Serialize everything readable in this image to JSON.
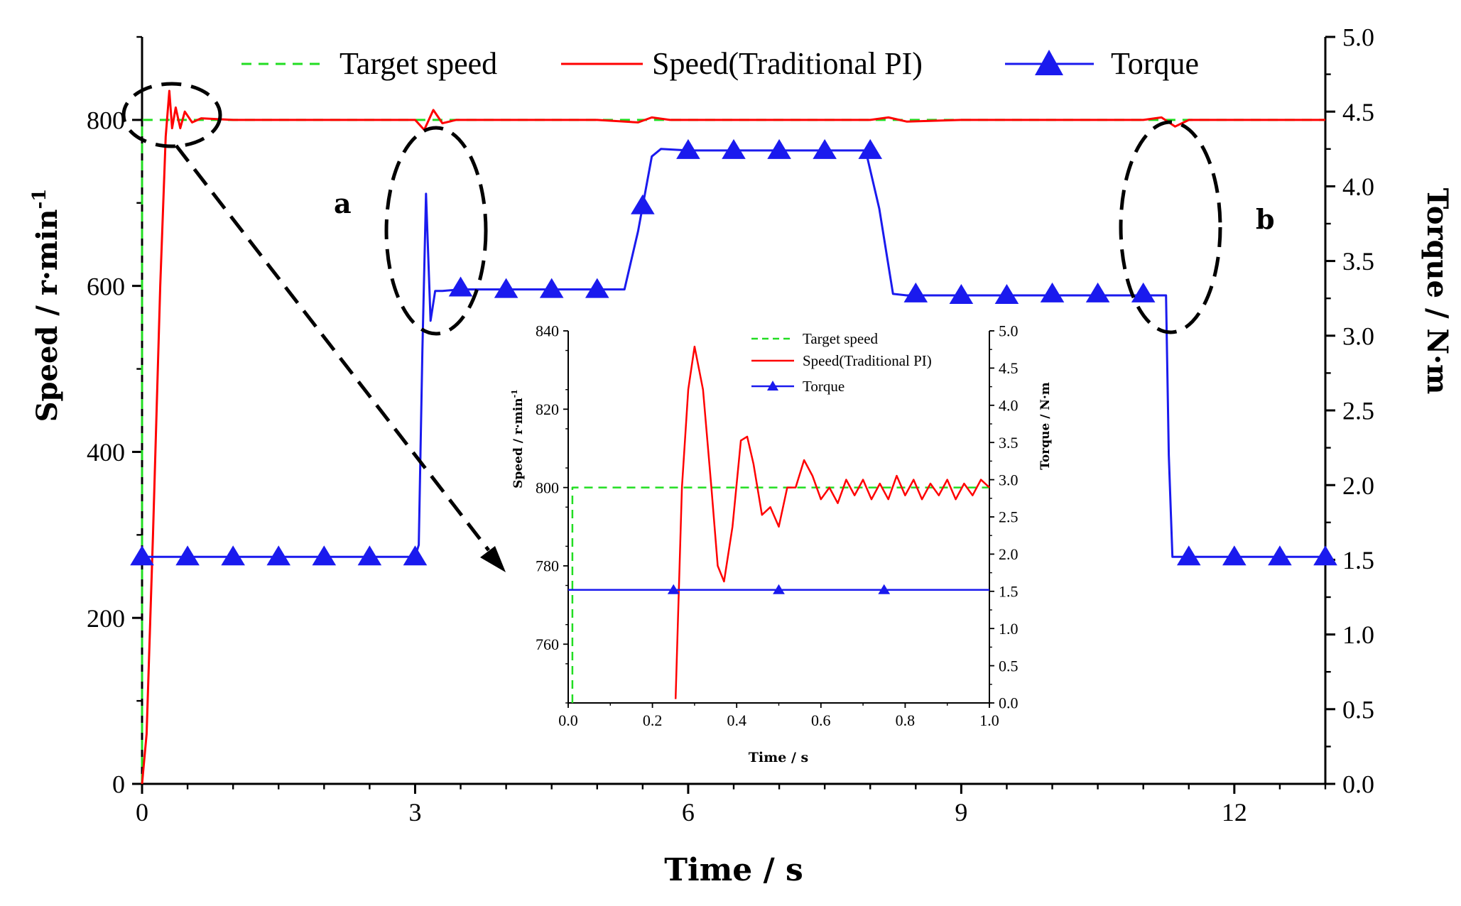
{
  "chart_data": [
    {
      "type": "line",
      "title": "",
      "xlabel": "Time / s",
      "ylabel_left": "Speed / r·min",
      "ylabel_left_sup": "-1",
      "ylabel_right": "Torque / N·m",
      "xlim": [
        0,
        13
      ],
      "ylim_left": [
        0,
        900
      ],
      "ylim_right": [
        0,
        5
      ],
      "x_ticks": [
        0,
        3,
        6,
        9,
        12
      ],
      "x_tick_labels": [
        "0",
        "3",
        "6",
        "9",
        "12"
      ],
      "y_left_ticks": [
        0,
        200,
        400,
        600,
        800
      ],
      "y_left_tick_labels": [
        "0",
        "200",
        "400",
        "600",
        "800"
      ],
      "y_right_ticks": [
        0,
        0.5,
        1,
        1.5,
        2,
        2.5,
        3,
        3.5,
        4,
        4.5,
        5
      ],
      "y_right_tick_labels": [
        "0.0",
        "0.5",
        "1.0",
        "1.5",
        "2.0",
        "2.5",
        "3.0",
        "3.5",
        "4.0",
        "4.5",
        "5.0"
      ],
      "legend": [
        "Target speed",
        "Speed(Traditional PI)",
        "Torque"
      ],
      "legend_position": "top",
      "annotations": [
        "a",
        "b"
      ],
      "series": [
        {
          "name": "Target speed",
          "axis": "left",
          "style": "dashed",
          "color": "#22dd22",
          "x": [
            0,
            0,
            13
          ],
          "y": [
            0,
            800,
            800
          ]
        },
        {
          "name": "Speed(Traditional PI)",
          "axis": "left",
          "style": "solid",
          "color": "#ff0000",
          "x": [
            0,
            0.05,
            0.12,
            0.2,
            0.26,
            0.3,
            0.33,
            0.37,
            0.42,
            0.47,
            0.55,
            0.65,
            1.0,
            2.0,
            3.0,
            3.1,
            3.2,
            3.3,
            3.45,
            4.0,
            5.0,
            5.45,
            5.6,
            5.8,
            6.5,
            7.5,
            8.0,
            8.2,
            8.4,
            9.0,
            10.0,
            11.0,
            11.2,
            11.35,
            11.5,
            12.0,
            13.0
          ],
          "y": [
            0,
            60,
            300,
            600,
            780,
            835,
            790,
            815,
            790,
            810,
            797,
            802,
            800,
            800,
            800,
            788,
            812,
            796,
            800,
            800,
            800,
            797,
            803,
            800,
            800,
            800,
            800,
            803,
            798,
            800,
            800,
            800,
            803,
            792,
            800,
            800,
            800
          ]
        },
        {
          "name": "Torque",
          "axis": "right",
          "style": "solid",
          "marker": "triangle",
          "color": "#1a1aee",
          "x": [
            0,
            3.0,
            3.04,
            3.08,
            3.12,
            3.17,
            3.22,
            3.3,
            3.5,
            5.3,
            5.45,
            5.6,
            5.7,
            6.0,
            7.95,
            8.1,
            8.25,
            8.4,
            11.25,
            11.28,
            11.32,
            13.0
          ],
          "y": [
            1.52,
            1.52,
            1.6,
            2.9,
            3.95,
            3.1,
            3.3,
            3.3,
            3.31,
            3.31,
            3.7,
            4.2,
            4.25,
            4.24,
            4.24,
            3.85,
            3.28,
            3.27,
            3.27,
            2.2,
            1.52,
            1.52
          ],
          "markers_x": [
            0,
            0.5,
            1.0,
            1.5,
            2.0,
            2.5,
            3.0,
            3.5,
            4.0,
            4.5,
            5.0,
            5.5,
            6.0,
            6.5,
            7.0,
            7.5,
            8.0,
            8.5,
            9.0,
            9.5,
            10.0,
            10.5,
            11.0,
            11.5,
            12.0,
            12.5,
            13.0
          ],
          "markers_y": [
            1.52,
            1.52,
            1.52,
            1.52,
            1.52,
            1.52,
            1.52,
            3.32,
            3.31,
            3.31,
            3.31,
            3.87,
            4.24,
            4.24,
            4.24,
            4.24,
            4.24,
            3.28,
            3.27,
            3.27,
            3.28,
            3.28,
            3.28,
            1.52,
            1.52,
            1.52,
            1.52
          ]
        }
      ]
    },
    {
      "type": "line",
      "title": "",
      "xlabel": "Time / s",
      "ylabel_left": "Speed / r·min",
      "ylabel_left_sup": "-1",
      "ylabel_right": "Torque / N·m",
      "xlim": [
        0,
        1
      ],
      "ylim_left": [
        745,
        840
      ],
      "ylim_right": [
        0,
        5
      ],
      "x_ticks": [
        0,
        0.2,
        0.4,
        0.6,
        0.8,
        1.0
      ],
      "x_tick_labels": [
        "0.0",
        "0.2",
        "0.4",
        "0.6",
        "0.8",
        "1.0"
      ],
      "y_left_ticks": [
        760,
        780,
        800,
        820,
        840
      ],
      "y_left_tick_labels": [
        "760",
        "780",
        "800",
        "820",
        "840"
      ],
      "y_right_ticks": [
        0,
        0.5,
        1,
        1.5,
        2,
        2.5,
        3,
        3.5,
        4,
        4.5,
        5
      ],
      "y_right_tick_labels": [
        "0.0",
        "0.5",
        "1.0",
        "1.5",
        "2.0",
        "2.5",
        "3.0",
        "3.5",
        "4.0",
        "4.5",
        "5.0"
      ],
      "legend": [
        "Target speed",
        "Speed(Traditional PI)",
        "Torque"
      ],
      "legend_position": "top-right",
      "series": [
        {
          "name": "Target speed",
          "axis": "left",
          "style": "dashed",
          "color": "#22dd22",
          "x": [
            0.01,
            0.01,
            1.0
          ],
          "y": [
            745,
            800,
            800
          ]
        },
        {
          "name": "Speed(Traditional PI)",
          "axis": "left",
          "style": "solid",
          "color": "#ff0000",
          "x": [
            0.255,
            0.27,
            0.285,
            0.3,
            0.32,
            0.34,
            0.355,
            0.37,
            0.39,
            0.41,
            0.425,
            0.44,
            0.46,
            0.48,
            0.5,
            0.52,
            0.54,
            0.56,
            0.58,
            0.6,
            0.62,
            0.64,
            0.66,
            0.68,
            0.7,
            0.72,
            0.74,
            0.76,
            0.78,
            0.8,
            0.82,
            0.84,
            0.86,
            0.88,
            0.9,
            0.92,
            0.94,
            0.96,
            0.98,
            1.0
          ],
          "y": [
            746,
            800,
            825,
            836,
            825,
            800,
            780,
            776,
            790,
            812,
            813,
            806,
            793,
            795,
            790,
            800,
            800,
            807,
            803,
            797,
            800,
            796,
            802,
            798,
            802,
            797,
            801,
            797,
            803,
            798,
            802,
            797,
            801,
            798,
            802,
            797,
            801,
            798,
            802,
            800
          ]
        },
        {
          "name": "Torque",
          "axis": "right",
          "style": "solid",
          "marker": "triangle",
          "color": "#1a1aee",
          "x": [
            0,
            1.0
          ],
          "y": [
            1.52,
            1.52
          ],
          "markers_x": [
            0.25,
            0.5,
            0.75
          ],
          "markers_y": [
            1.52,
            1.52,
            1.52
          ]
        }
      ]
    }
  ]
}
